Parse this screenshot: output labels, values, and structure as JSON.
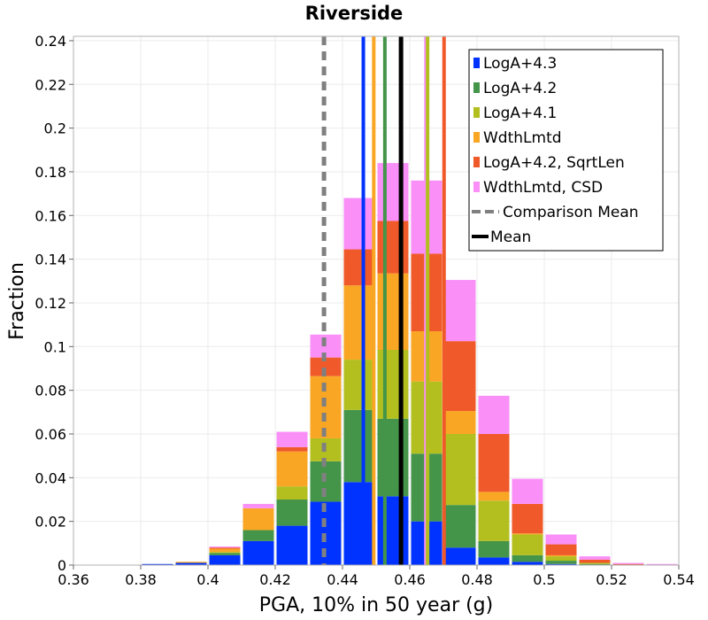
{
  "chart_data": {
    "type": "bar",
    "stacked": true,
    "title": "Riverside",
    "xlabel": "PGA, 10% in 50 year (g)",
    "ylabel": "Fraction",
    "xlim": [
      0.36,
      0.54
    ],
    "ylim": [
      0,
      0.242
    ],
    "xticks": [
      "0.36",
      "0.38",
      "0.4",
      "0.42",
      "0.44",
      "0.46",
      "0.48",
      "0.5",
      "0.52",
      "0.54"
    ],
    "yticks": [
      "0",
      "0.02",
      "0.04",
      "0.06",
      "0.08",
      "0.1",
      "0.12",
      "0.14",
      "0.16",
      "0.18",
      "0.2",
      "0.22",
      "0.24"
    ],
    "bin_width": 0.01,
    "bin_centers": [
      0.385,
      0.395,
      0.405,
      0.415,
      0.425,
      0.435,
      0.445,
      0.455,
      0.465,
      0.475,
      0.485,
      0.495,
      0.505,
      0.515,
      0.525,
      0.535
    ],
    "series": [
      {
        "name": "LogA+4.3",
        "color": "#0033ff",
        "values": [
          0.0005,
          0.001,
          0.0045,
          0.011,
          0.018,
          0.029,
          0.038,
          0.0315,
          0.02,
          0.008,
          0.0035,
          0.0015,
          0.0005,
          0,
          0,
          0
        ]
      },
      {
        "name": "LogA+4.2",
        "color": "#44944a",
        "values": [
          0,
          0,
          0.001,
          0.005,
          0.012,
          0.0185,
          0.033,
          0.0355,
          0.031,
          0.0195,
          0.0075,
          0.003,
          0.0015,
          0.0005,
          0,
          0
        ]
      },
      {
        "name": "LogA+4.1",
        "color": "#b2bf1f",
        "values": [
          0,
          0,
          0.0005,
          0,
          0.006,
          0.0105,
          0.023,
          0.0315,
          0.033,
          0.0325,
          0.0185,
          0.0095,
          0.002,
          0.0005,
          0,
          0
        ]
      },
      {
        "name": "WdthLmtd",
        "color": "#f8a623",
        "values": [
          0,
          0.0005,
          0.0015,
          0.01,
          0.016,
          0.0285,
          0.034,
          0.035,
          0.023,
          0.0105,
          0.004,
          0.0005,
          0.0005,
          0,
          0,
          0
        ]
      },
      {
        "name": "LogA+4.2, SqrtLen",
        "color": "#f05a2a",
        "values": [
          0,
          0,
          0.0005,
          0,
          0.002,
          0.0085,
          0.0165,
          0.024,
          0.0355,
          0.032,
          0.0265,
          0.0135,
          0.005,
          0.0015,
          0.0005,
          0
        ]
      },
      {
        "name": "WdthLmtd, CSD",
        "color": "#f98ff7",
        "values": [
          0,
          0,
          0.0005,
          0.002,
          0.007,
          0.0105,
          0.0235,
          0.0265,
          0.0335,
          0.028,
          0.0175,
          0.0115,
          0.0045,
          0.0015,
          0.0005,
          0.0005
        ]
      }
    ],
    "vertical_lines": [
      {
        "name": "Comparison Mean",
        "x": 0.4345,
        "color": "#808080",
        "style": "dashed"
      },
      {
        "name": "Mean",
        "x": 0.4574,
        "color": "#000000",
        "style": "solid"
      }
    ],
    "series_mean_lines": [
      {
        "name": "LogA+4.3",
        "x": 0.4462,
        "color": "#0033ff"
      },
      {
        "name": "WdthLmtd",
        "x": 0.4493,
        "color": "#f8a623"
      },
      {
        "name": "LogA+4.2",
        "x": 0.4526,
        "color": "#44944a"
      },
      {
        "name": "WdthLmtd, CSD",
        "x": 0.4648,
        "color": "#f98ff7"
      },
      {
        "name": "LogA+4.1",
        "x": 0.4653,
        "color": "#b2bf1f"
      },
      {
        "name": "LogA+4.2, SqrtLen",
        "x": 0.4702,
        "color": "#f05a2a"
      }
    ],
    "legend": {
      "position": "top-right",
      "entries": [
        {
          "label": "LogA+4.3",
          "color": "#0033ff",
          "kind": "patch"
        },
        {
          "label": "LogA+4.2",
          "color": "#44944a",
          "kind": "patch"
        },
        {
          "label": "LogA+4.1",
          "color": "#b2bf1f",
          "kind": "patch"
        },
        {
          "label": "WdthLmtd",
          "color": "#f8a623",
          "kind": "patch"
        },
        {
          "label": "LogA+4.2, SqrtLen",
          "color": "#f05a2a",
          "kind": "patch"
        },
        {
          "label": "WdthLmtd, CSD",
          "color": "#f98ff7",
          "kind": "patch"
        },
        {
          "label": "Comparison Mean",
          "color": "#808080",
          "kind": "dashed-line"
        },
        {
          "label": "Mean",
          "color": "#000000",
          "kind": "line"
        }
      ]
    },
    "grid": true
  }
}
